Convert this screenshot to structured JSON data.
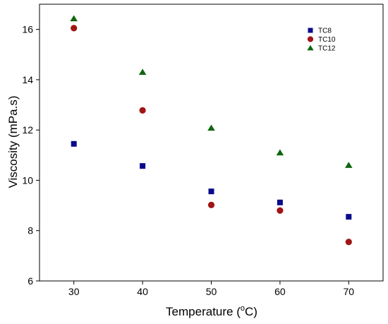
{
  "chart_data": {
    "type": "scatter",
    "xlabel": "Temperature (",
    "xlabel_sup": "o",
    "xlabel_unit": "C)",
    "ylabel": "Viscosity (mPa.s)",
    "xlim": [
      25,
      75
    ],
    "ylim": [
      6,
      17
    ],
    "xticks": [
      30,
      40,
      50,
      60,
      70
    ],
    "yticks": [
      6,
      8,
      10,
      12,
      14,
      16
    ],
    "legend_position": "top-right",
    "series": [
      {
        "name": "TC8",
        "marker": "square",
        "color": "#0a0a8a",
        "x": [
          30,
          40,
          50,
          60,
          70
        ],
        "y": [
          11.45,
          10.57,
          9.56,
          9.12,
          8.55
        ]
      },
      {
        "name": "TC10",
        "marker": "circle",
        "color": "#a01515",
        "x": [
          30,
          40,
          50,
          60,
          70
        ],
        "y": [
          16.05,
          12.78,
          9.02,
          8.8,
          7.55
        ]
      },
      {
        "name": "TC12",
        "marker": "triangle",
        "color": "#0f660f",
        "x": [
          30,
          40,
          50,
          60,
          70
        ],
        "y": [
          16.43,
          14.3,
          12.08,
          11.1,
          10.6
        ]
      }
    ]
  }
}
